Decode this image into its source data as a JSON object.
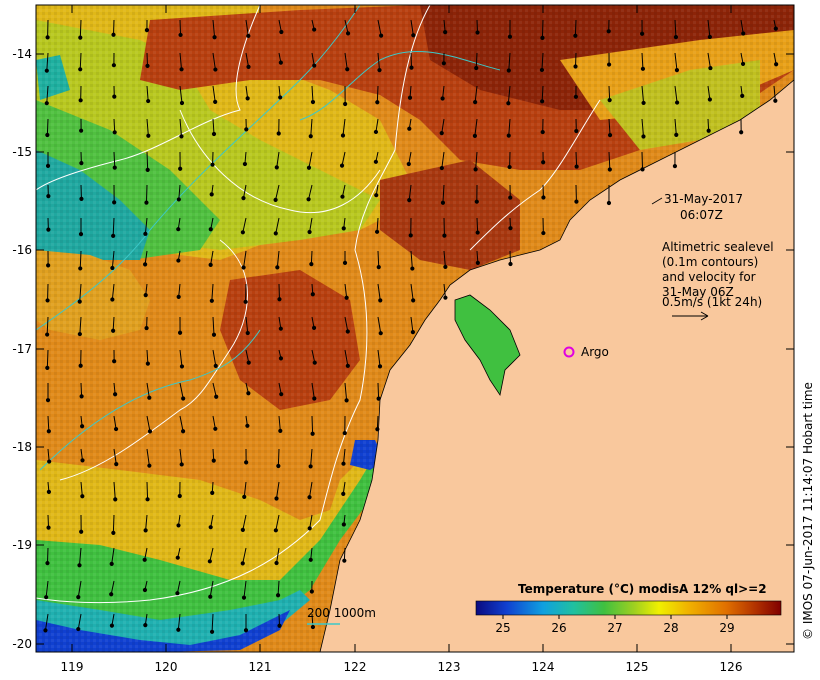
{
  "map": {
    "lat_ticks": [
      "-14",
      "-15",
      "-16",
      "-17",
      "-18",
      "-19",
      "-20"
    ],
    "lon_ticks": [
      "119",
      "120",
      "121",
      "122",
      "123",
      "124",
      "125",
      "126"
    ],
    "timestamp_date": "31-May-2017",
    "timestamp_time": "06:07Z",
    "legend_lines": [
      "Altimetric sealevel",
      "(0.1m contours)",
      "and velocity for",
      "31-May 06Z",
      "0.5m/s (1kt 24h)"
    ],
    "argo_label": "Argo",
    "depth_label": "200  1000m",
    "credit": "© IMOS 07-Jun-2017 11:14:07 Hobart time",
    "colorbar_title": "Temperature (°C) modisA 12% ql>=2",
    "colorbar_ticks": [
      "25",
      "26",
      "27",
      "28",
      "29"
    ],
    "colors": {
      "land": "#f9c89d",
      "argo": "#e000e0",
      "contour": "#ffffff",
      "isobath": "#3cc8c8"
    }
  }
}
